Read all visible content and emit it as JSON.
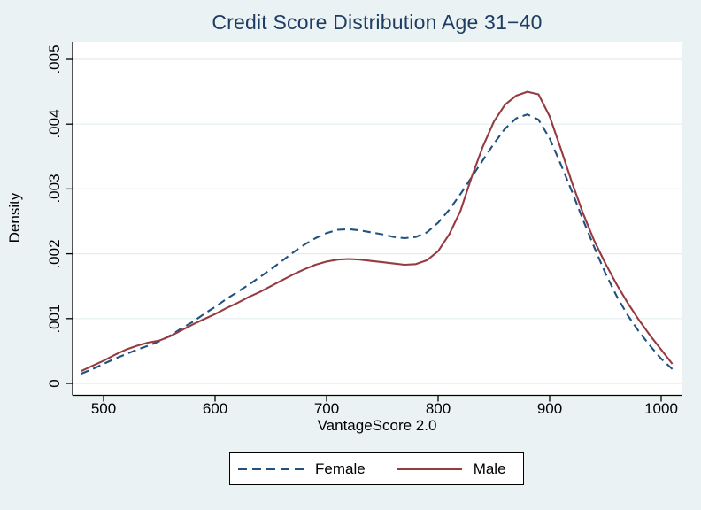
{
  "title": "Credit Score Distribution Age 31−40",
  "colors": {
    "background": "#eaf2f3",
    "plot_background": "#ffffff",
    "grid": "#e3edf0",
    "axis": "#000000",
    "title_text": "#1e3d63",
    "female_line": "#21517e",
    "male_line": "#953b41"
  },
  "legend": {
    "items": [
      {
        "label": "Female",
        "style": "dashed"
      },
      {
        "label": "Male",
        "style": "solid"
      }
    ],
    "position": "bottom-center",
    "border": "black"
  },
  "chart_data": {
    "type": "line",
    "title": "Credit Score Distribution Age 31−40",
    "xlabel": "VantageScore 2.0",
    "ylabel": "Density",
    "grid": true,
    "legend_position": "bottom",
    "xlim": [
      472,
      1018
    ],
    "ylim": [
      0,
      0.00527
    ],
    "xtick_values": [
      500,
      600,
      700,
      800,
      900,
      1000
    ],
    "xtick_labels": [
      "500",
      "600",
      "700",
      "800",
      "900",
      "1000"
    ],
    "ytick_values": [
      0,
      0.001,
      0.002,
      0.003,
      0.004,
      0.005
    ],
    "ytick_labels": [
      "0",
      ".001",
      ".002",
      ".003",
      ".004",
      ".005"
    ],
    "x": [
      480,
      490,
      500,
      510,
      520,
      530,
      540,
      550,
      560,
      570,
      580,
      590,
      600,
      610,
      620,
      630,
      640,
      650,
      660,
      670,
      680,
      690,
      700,
      710,
      720,
      730,
      740,
      750,
      760,
      770,
      780,
      790,
      800,
      810,
      820,
      830,
      840,
      850,
      860,
      870,
      880,
      890,
      900,
      910,
      920,
      930,
      940,
      950,
      960,
      970,
      980,
      990,
      1000,
      1010
    ],
    "series": [
      {
        "name": "Female",
        "style": "dashed",
        "color": "#21517e",
        "values": [
          0.00015,
          0.00022,
          0.0003,
          0.00038,
          0.00045,
          0.00052,
          0.00058,
          0.00065,
          0.00074,
          0.00085,
          0.00095,
          0.00107,
          0.00118,
          0.0013,
          0.00141,
          0.00152,
          0.00164,
          0.00176,
          0.00189,
          0.00202,
          0.00214,
          0.00224,
          0.00232,
          0.00237,
          0.00238,
          0.00236,
          0.00233,
          0.0023,
          0.00226,
          0.00224,
          0.00226,
          0.00233,
          0.00248,
          0.00268,
          0.00292,
          0.00318,
          0.00344,
          0.0037,
          0.00393,
          0.00409,
          0.00415,
          0.00407,
          0.00378,
          0.00338,
          0.00296,
          0.00252,
          0.0021,
          0.0017,
          0.00135,
          0.00105,
          0.0008,
          0.00058,
          0.00038,
          0.00022
        ]
      },
      {
        "name": "Male",
        "style": "solid",
        "color": "#953b41",
        "values": [
          0.00019,
          0.00027,
          0.00035,
          0.00044,
          0.00052,
          0.00058,
          0.00063,
          0.00066,
          0.00073,
          0.00082,
          0.00091,
          0.00099,
          0.00107,
          0.00116,
          0.00124,
          0.00133,
          0.00141,
          0.0015,
          0.00159,
          0.00168,
          0.00176,
          0.00183,
          0.00188,
          0.00191,
          0.00192,
          0.00191,
          0.00189,
          0.00187,
          0.00185,
          0.00183,
          0.00184,
          0.0019,
          0.00204,
          0.0023,
          0.00266,
          0.00318,
          0.00365,
          0.00404,
          0.0043,
          0.00444,
          0.0045,
          0.00446,
          0.00412,
          0.00362,
          0.0031,
          0.00262,
          0.0022,
          0.00185,
          0.00153,
          0.00124,
          0.00098,
          0.00074,
          0.00052,
          0.0003
        ]
      }
    ]
  }
}
